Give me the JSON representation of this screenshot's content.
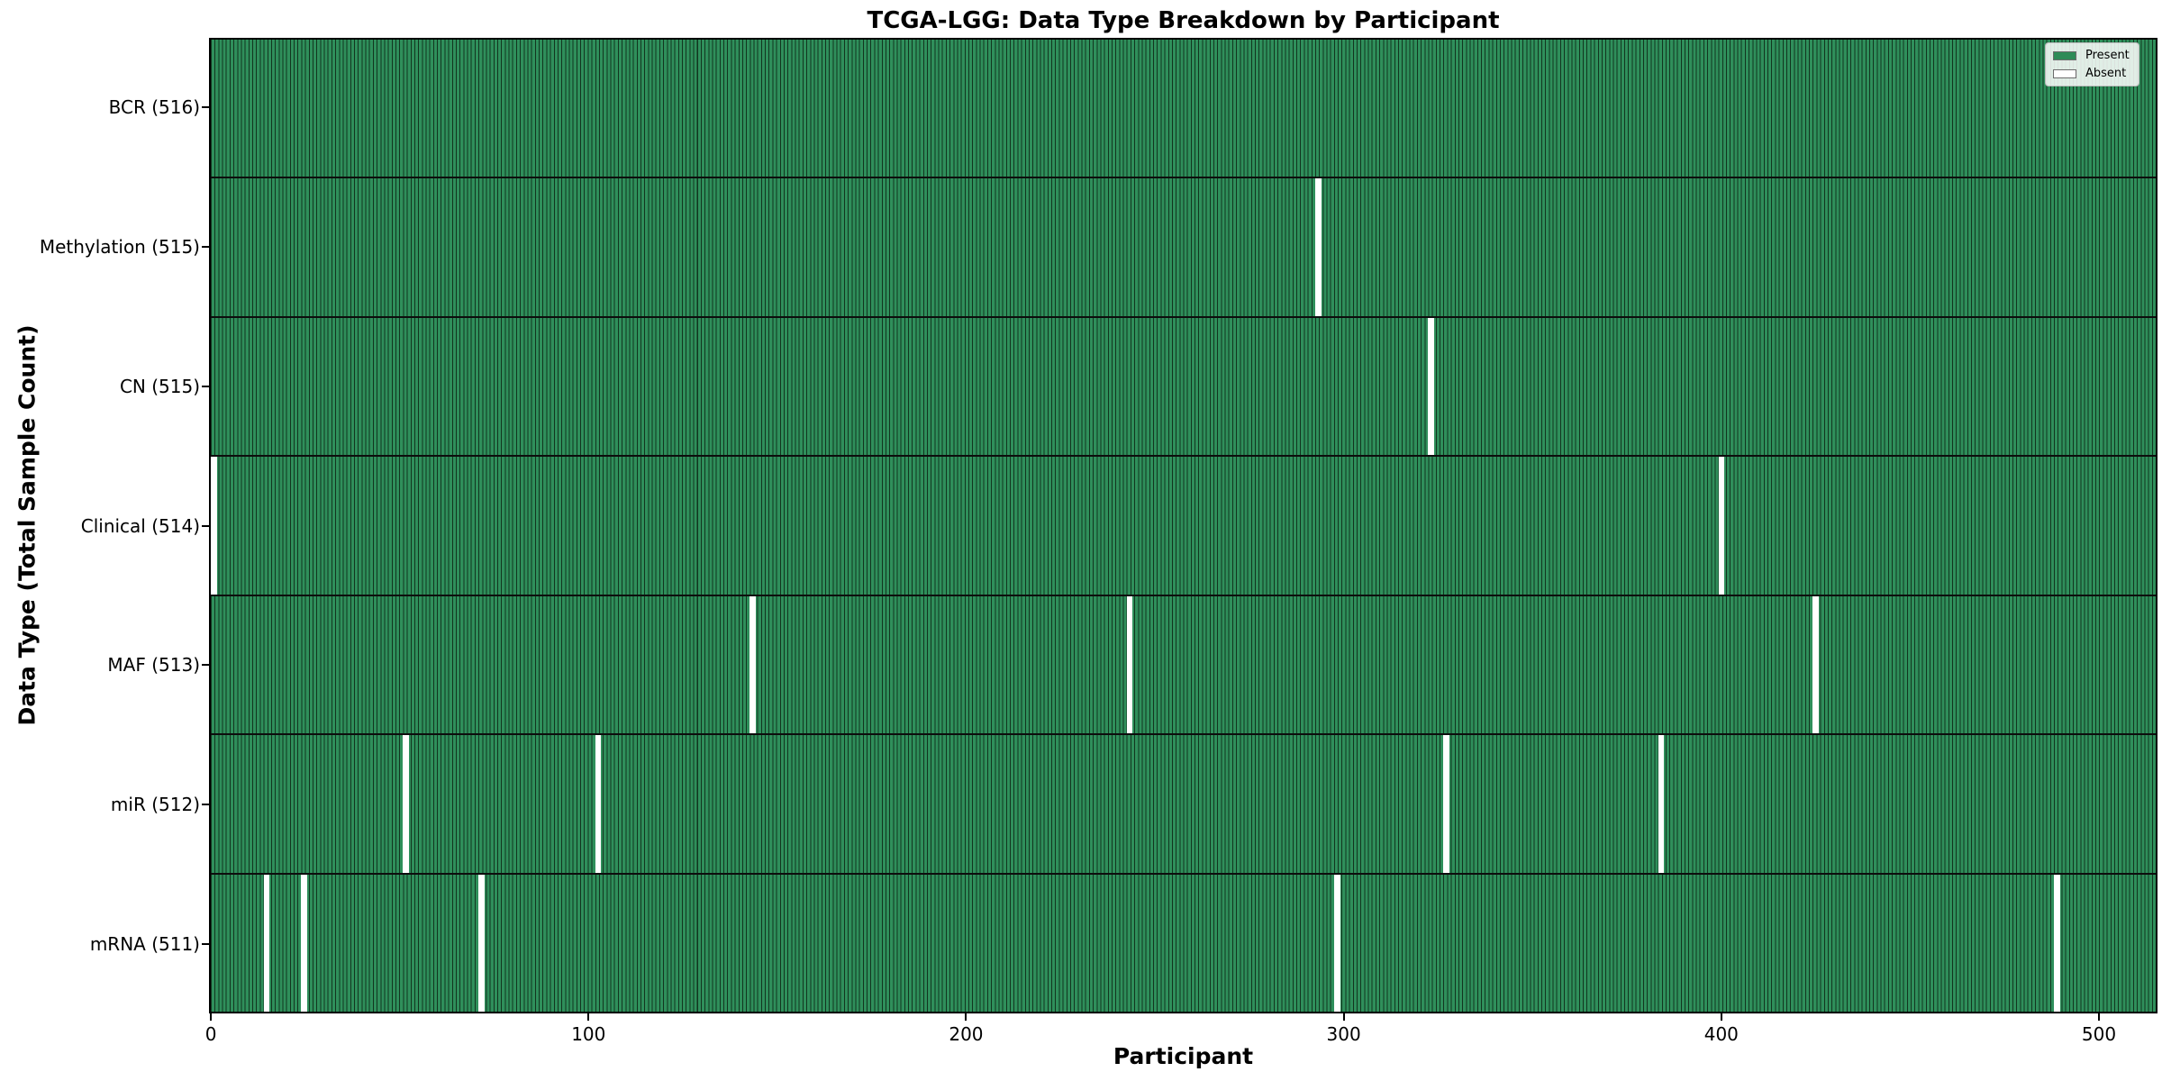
{
  "title": "TCGA-LGG: Data Type Breakdown by Participant",
  "chart_data": {
    "type": "heatmap",
    "title": "TCGA-LGG: Data Type Breakdown by Participant",
    "xlabel": "Participant",
    "ylabel": "Data Type (Total Sample Count)",
    "x_ticks": [
      0,
      100,
      200,
      300,
      400,
      500
    ],
    "total_participants": 516,
    "grid": false,
    "legend": {
      "position": "upper right",
      "entries": [
        {
          "label": "Present",
          "color": "#2e8b57"
        },
        {
          "label": "Absent",
          "color": "#ffffff"
        }
      ]
    },
    "colors": {
      "present": "#2f8f5b",
      "bar_edge": "#12351f",
      "absent": "#ffffff",
      "row_divider": "#0d0d0d"
    },
    "rows": [
      {
        "data_type": "BCR",
        "label": "BCR (516)",
        "present_count": 516,
        "absent_participants": []
      },
      {
        "data_type": "Methylation",
        "label": "Methylation (515)",
        "present_count": 515,
        "absent_participants": [
          293
        ]
      },
      {
        "data_type": "CN",
        "label": "CN (515)",
        "present_count": 515,
        "absent_participants": [
          323
        ]
      },
      {
        "data_type": "Clinical",
        "label": "Clinical (514)",
        "present_count": 514,
        "absent_participants": [
          0,
          400
        ]
      },
      {
        "data_type": "MAF",
        "label": "MAF (513)",
        "present_count": 513,
        "absent_participants": [
          143,
          243,
          425
        ]
      },
      {
        "data_type": "miR",
        "label": "miR (512)",
        "present_count": 512,
        "absent_participants": [
          51,
          102,
          327,
          384
        ]
      },
      {
        "data_type": "mRNA",
        "label": "mRNA (511)",
        "present_count": 511,
        "absent_participants": [
          14,
          24,
          71,
          298,
          489
        ]
      }
    ]
  }
}
